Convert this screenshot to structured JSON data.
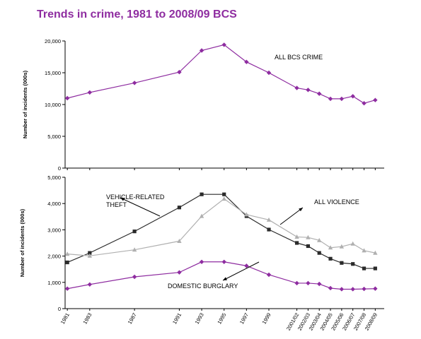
{
  "title": "Trends in crime, 1981 to 2008/09 BCS",
  "colors": {
    "title": "#8e2ca0",
    "purple": "#8e2ca0",
    "black": "#2b2b2b",
    "grey": "#b0b0b0",
    "axis": "#000000"
  },
  "chart_data": [
    {
      "type": "line",
      "ylabel": "Number of incidents (000s)",
      "ylim": [
        0,
        20000
      ],
      "yticks": [
        0,
        5000,
        10000,
        15000,
        20000
      ],
      "ytick_labels": [
        "0",
        "5,000",
        "10,000",
        "15,000",
        "20,000"
      ],
      "x": [
        "1981",
        "1983",
        "1987",
        "1991",
        "1993",
        "1995",
        "1997",
        "1999",
        "2001/02",
        "2002/03",
        "2003/04",
        "2004/05",
        "2005/06",
        "2006/07",
        "2007/08",
        "2008/09"
      ],
      "series": [
        {
          "name": "ALL BCS CRIME",
          "color": "#8e2ca0",
          "marker": "diamond",
          "values": [
            11000,
            11900,
            13400,
            15100,
            18500,
            19400,
            16700,
            15000,
            12600,
            12300,
            11700,
            10900,
            10900,
            11300,
            10200,
            10700
          ]
        }
      ]
    },
    {
      "type": "line",
      "ylabel": "Number of incidents (000s)",
      "ylim": [
        0,
        5000
      ],
      "yticks": [
        0,
        1000,
        2000,
        3000,
        4000,
        5000
      ],
      "ytick_labels": [
        "0",
        "1,000",
        "2,000",
        "3,000",
        "4,000",
        "5,000"
      ],
      "x": [
        "1981",
        "1983",
        "1987",
        "1991",
        "1993",
        "1995",
        "1997",
        "1999",
        "2001/02",
        "2002/03",
        "2003/04",
        "2004/05",
        "2005/06",
        "2006/07",
        "2007/08",
        "2008/09"
      ],
      "xtick_labels": [
        "1981",
        "1983",
        "1987",
        "1991",
        "1993",
        "1995",
        "1997",
        "1999",
        "2001/02",
        "2002/03",
        "2003/04",
        "2004/05",
        "2005/06",
        "2006/07",
        "2007/08",
        "2008/09"
      ],
      "series": [
        {
          "name": "VEHICLE-RELATED THEFT",
          "label_lines": [
            "VEHICLE-RELATED",
            "THEFT"
          ],
          "color": "#2b2b2b",
          "marker": "square",
          "values": [
            1760,
            2120,
            2940,
            3850,
            4350,
            4350,
            3520,
            3010,
            2500,
            2380,
            2120,
            1900,
            1740,
            1700,
            1530,
            1530
          ]
        },
        {
          "name": "ALL VIOLENCE",
          "label_lines": [
            "ALL VIOLENCE"
          ],
          "color": "#b0b0b0",
          "marker": "triangle",
          "values": [
            2080,
            2010,
            2240,
            2570,
            3520,
            4180,
            3580,
            3380,
            2730,
            2710,
            2600,
            2320,
            2360,
            2470,
            2210,
            2120
          ]
        },
        {
          "name": "DOMESTIC BURGLARY",
          "label_lines": [
            "DOMESTIC BURGLARY"
          ],
          "color": "#8e2ca0",
          "marker": "diamond",
          "values": [
            760,
            920,
            1210,
            1380,
            1780,
            1780,
            1630,
            1290,
            970,
            970,
            940,
            780,
            740,
            740,
            750,
            760
          ]
        }
      ]
    }
  ]
}
